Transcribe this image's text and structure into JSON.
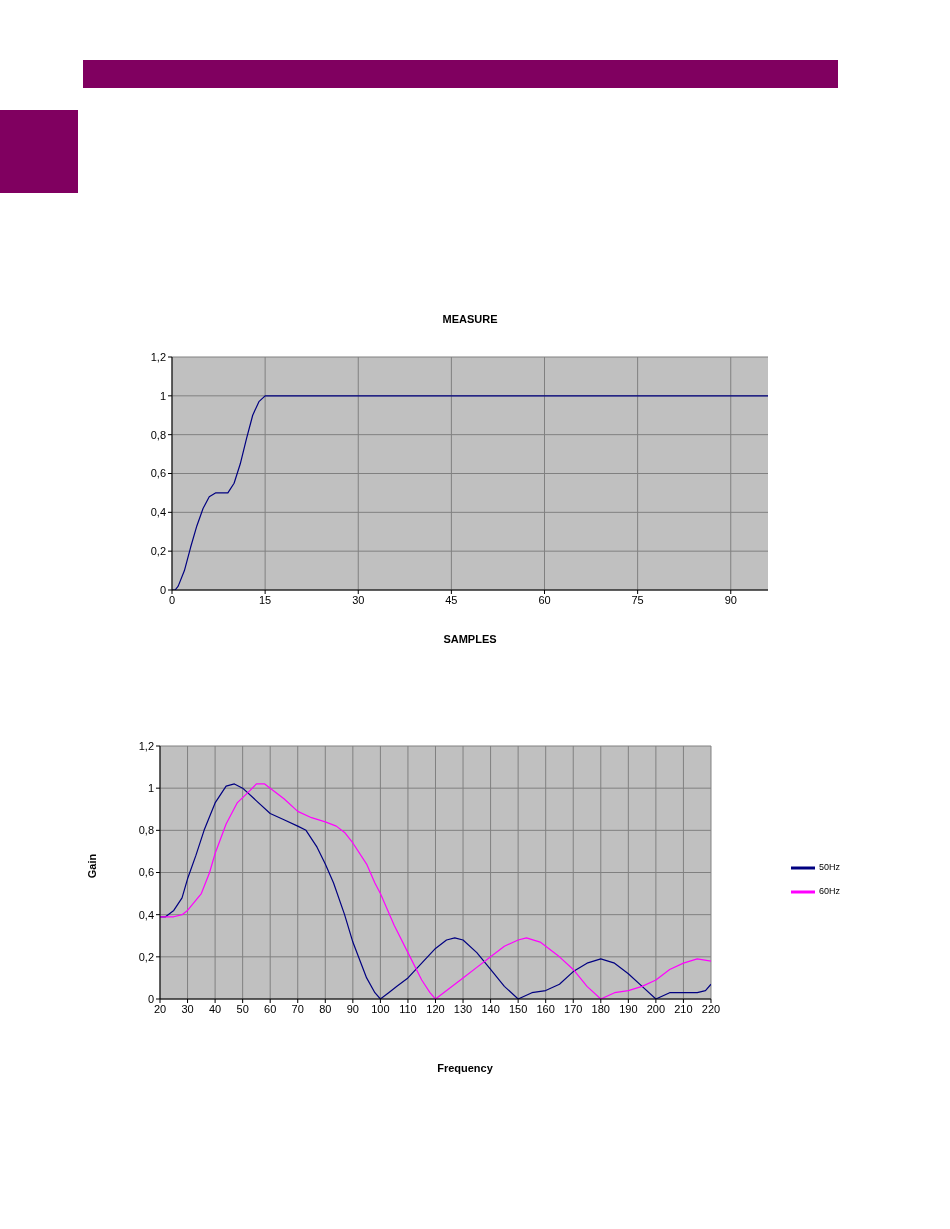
{
  "chart_data": [
    {
      "type": "line",
      "title": "MEASURE",
      "xlabel": "SAMPLES",
      "x": [
        0,
        0.5,
        1,
        2,
        3,
        4,
        5,
        6,
        7,
        9,
        10,
        11,
        12,
        13,
        14,
        15,
        96
      ],
      "series": [
        {
          "color": "#000080",
          "values": [
            0,
            0,
            0.02,
            0.1,
            0.22,
            0.33,
            0.42,
            0.48,
            0.5,
            0.5,
            0.55,
            0.65,
            0.78,
            0.9,
            0.97,
            1,
            1
          ]
        }
      ],
      "xlim": [
        0,
        96
      ],
      "xticks": [
        0,
        15,
        30,
        45,
        60,
        75,
        90
      ],
      "ylim": [
        0,
        1.2
      ],
      "yticks": [
        {
          "value": 0,
          "label": "0"
        },
        {
          "value": 0.2,
          "label": "0,2"
        },
        {
          "value": 0.4,
          "label": "0,4"
        },
        {
          "value": 0.6,
          "label": "0,6"
        },
        {
          "value": 0.8,
          "label": "0,8"
        },
        {
          "value": 1,
          "label": "1"
        },
        {
          "value": 1.2,
          "label": "1,2"
        }
      ],
      "grid": true,
      "legend": false,
      "marker": "none",
      "line_style": "solid"
    },
    {
      "type": "line",
      "xlabel": "Frequency",
      "ylabel": "Gain",
      "series": [
        {
          "name": "50Hz",
          "color": "#000080",
          "x": [
            20,
            22,
            25,
            28,
            30,
            33,
            36,
            40,
            44,
            47,
            50,
            55,
            60,
            65,
            70,
            73,
            77,
            80,
            83,
            87,
            90,
            95,
            98,
            100,
            103,
            106,
            110,
            115,
            120,
            124,
            127,
            130,
            135,
            140,
            145,
            150,
            155,
            160,
            165,
            170,
            175,
            180,
            185,
            190,
            195,
            200,
            205,
            210,
            215,
            218,
            220
          ],
          "values": [
            0.39,
            0.39,
            0.42,
            0.48,
            0.57,
            0.68,
            0.8,
            0.93,
            1.01,
            1.02,
            1.0,
            0.94,
            0.88,
            0.85,
            0.82,
            0.8,
            0.72,
            0.64,
            0.55,
            0.4,
            0.27,
            0.1,
            0.03,
            0,
            0.03,
            0.06,
            0.1,
            0.17,
            0.24,
            0.28,
            0.29,
            0.28,
            0.22,
            0.14,
            0.06,
            0,
            0.03,
            0.04,
            0.07,
            0.13,
            0.17,
            0.19,
            0.17,
            0.12,
            0.06,
            0,
            0.03,
            0.03,
            0.03,
            0.04,
            0.07
          ]
        },
        {
          "name": "60Hz",
          "color": "#ff00ff",
          "x": [
            20,
            25,
            28,
            30,
            35,
            38,
            40,
            44,
            48,
            52,
            55,
            58,
            60,
            65,
            70,
            75,
            80,
            84,
            87,
            90,
            95,
            98,
            100,
            105,
            110,
            115,
            118,
            120,
            125,
            130,
            135,
            140,
            145,
            150,
            153,
            158,
            165,
            170,
            175,
            180,
            185,
            190,
            195,
            200,
            205,
            210,
            215,
            220
          ],
          "values": [
            0.39,
            0.39,
            0.4,
            0.42,
            0.5,
            0.6,
            0.69,
            0.83,
            0.93,
            0.98,
            1.02,
            1.02,
            1.0,
            0.95,
            0.89,
            0.86,
            0.84,
            0.82,
            0.79,
            0.74,
            0.64,
            0.55,
            0.5,
            0.35,
            0.22,
            0.09,
            0.03,
            0,
            0.05,
            0.1,
            0.15,
            0.2,
            0.25,
            0.28,
            0.29,
            0.27,
            0.2,
            0.14,
            0.06,
            0,
            0.03,
            0.04,
            0.06,
            0.09,
            0.14,
            0.17,
            0.19,
            0.18
          ]
        }
      ],
      "xlim": [
        20,
        220
      ],
      "xticks": [
        20,
        30,
        40,
        50,
        60,
        70,
        80,
        90,
        100,
        110,
        120,
        130,
        140,
        150,
        160,
        170,
        180,
        190,
        200,
        210,
        220
      ],
      "ylim": [
        0,
        1.2
      ],
      "yticks": [
        {
          "value": 0,
          "label": "0"
        },
        {
          "value": 0.2,
          "label": "0,2"
        },
        {
          "value": 0.4,
          "label": "0,4"
        },
        {
          "value": 0.6,
          "label": "0,6"
        },
        {
          "value": 0.8,
          "label": "0,8"
        },
        {
          "value": 1,
          "label": "1"
        },
        {
          "value": 1.2,
          "label": "1,2"
        }
      ],
      "grid": true,
      "legend": "right",
      "marker": "none",
      "line_style": "solid"
    }
  ]
}
